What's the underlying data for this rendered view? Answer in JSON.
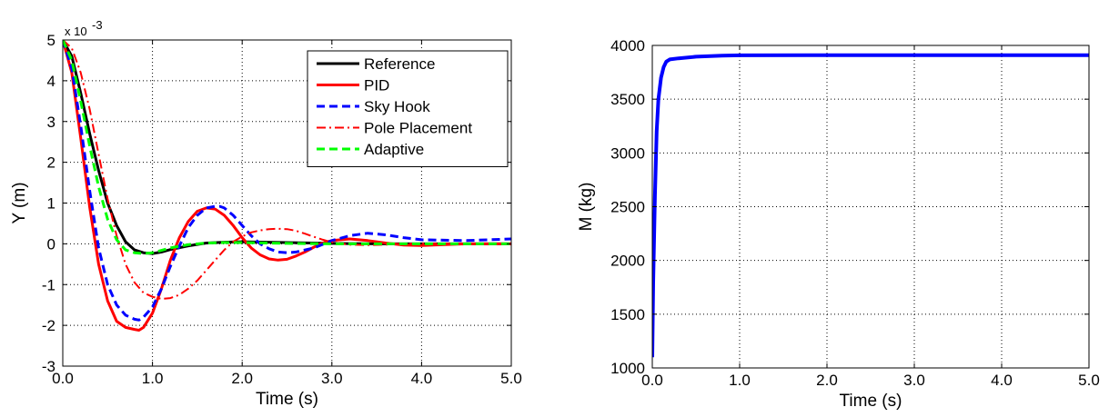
{
  "chart_data": [
    {
      "type": "line",
      "xlabel": "Time (s)",
      "ylabel": "Y (m)",
      "y_multiplier_label": "x 10",
      "y_multiplier_exponent": "-3",
      "xlim": [
        0,
        5
      ],
      "ylim": [
        -3,
        5
      ],
      "x_ticks": [
        0,
        1,
        2,
        3,
        4,
        5
      ],
      "x_tick_labels": [
        "0.0",
        "1.0",
        "2.0",
        "3.0",
        "4.0",
        "5.0"
      ],
      "y_ticks": [
        -3,
        -2,
        -1,
        0,
        1,
        2,
        3,
        4,
        5
      ],
      "y_tick_labels": [
        "-3",
        "-2",
        "-1",
        "0",
        "1",
        "2",
        "3",
        "4",
        "5"
      ],
      "grid": true,
      "legend_position": "top-right",
      "series": [
        {
          "name": "Reference",
          "color": "#000000",
          "dash": "solid",
          "width": 3,
          "x": [
            0,
            0.1,
            0.2,
            0.3,
            0.4,
            0.5,
            0.6,
            0.7,
            0.8,
            0.9,
            1.0,
            1.1,
            1.2,
            1.4,
            1.6,
            1.8,
            2.0,
            2.5,
            3.0,
            3.5,
            4.0,
            4.5,
            5.0
          ],
          "y": [
            5.0,
            4.6,
            3.7,
            2.7,
            1.8,
            1.0,
            0.45,
            0.05,
            -0.15,
            -0.22,
            -0.24,
            -0.2,
            -0.14,
            -0.05,
            0.02,
            0.04,
            0.05,
            0.03,
            0.01,
            0.0,
            0.0,
            0.0,
            0.0
          ]
        },
        {
          "name": "PID",
          "color": "#ff0000",
          "dash": "solid",
          "width": 3,
          "x": [
            0,
            0.1,
            0.2,
            0.3,
            0.4,
            0.5,
            0.6,
            0.7,
            0.8,
            0.85,
            0.9,
            1.0,
            1.1,
            1.2,
            1.3,
            1.4,
            1.5,
            1.6,
            1.7,
            1.8,
            1.9,
            2.0,
            2.1,
            2.2,
            2.3,
            2.4,
            2.5,
            2.6,
            2.7,
            2.8,
            2.9,
            3.0,
            3.2,
            3.4,
            3.6,
            3.8,
            4.0,
            4.5,
            5.0
          ],
          "y": [
            5.0,
            4.2,
            2.6,
            0.9,
            -0.5,
            -1.4,
            -1.9,
            -2.05,
            -2.1,
            -2.12,
            -2.05,
            -1.7,
            -1.1,
            -0.4,
            0.15,
            0.55,
            0.8,
            0.88,
            0.85,
            0.7,
            0.45,
            0.15,
            -0.1,
            -0.27,
            -0.37,
            -0.4,
            -0.38,
            -0.3,
            -0.2,
            -0.08,
            0.02,
            0.08,
            0.12,
            0.08,
            0.02,
            -0.03,
            -0.04,
            0.0,
            0.0
          ]
        },
        {
          "name": "Sky Hook",
          "color": "#0000ff",
          "dash": "dashed",
          "width": 3,
          "x": [
            0,
            0.1,
            0.2,
            0.3,
            0.4,
            0.5,
            0.6,
            0.7,
            0.8,
            0.85,
            0.9,
            1.0,
            1.1,
            1.2,
            1.3,
            1.4,
            1.5,
            1.6,
            1.7,
            1.75,
            1.8,
            1.9,
            2.0,
            2.1,
            2.2,
            2.3,
            2.4,
            2.5,
            2.6,
            2.8,
            3.0,
            3.2,
            3.4,
            3.6,
            3.8,
            4.0,
            4.5,
            5.0
          ],
          "y": [
            5.0,
            4.3,
            2.9,
            1.3,
            -0.1,
            -1.0,
            -1.5,
            -1.75,
            -1.85,
            -1.87,
            -1.8,
            -1.55,
            -1.1,
            -0.55,
            -0.05,
            0.4,
            0.7,
            0.88,
            0.92,
            0.92,
            0.88,
            0.7,
            0.45,
            0.2,
            0.0,
            -0.12,
            -0.2,
            -0.22,
            -0.2,
            -0.1,
            0.08,
            0.2,
            0.26,
            0.22,
            0.15,
            0.1,
            0.08,
            0.12
          ]
        },
        {
          "name": "Pole Placement",
          "color": "#ff0000",
          "dash": "dashdot",
          "width": 2,
          "x": [
            0,
            0.1,
            0.2,
            0.3,
            0.4,
            0.5,
            0.6,
            0.7,
            0.8,
            0.9,
            1.0,
            1.1,
            1.2,
            1.3,
            1.4,
            1.5,
            1.6,
            1.7,
            1.8,
            1.9,
            2.0,
            2.1,
            2.2,
            2.3,
            2.4,
            2.5,
            2.6,
            2.7,
            2.8,
            2.9,
            3.0,
            3.2,
            3.4,
            3.6,
            3.8,
            4.0,
            4.5,
            5.0
          ],
          "y": [
            5.0,
            4.8,
            4.2,
            3.3,
            2.2,
            1.1,
            0.2,
            -0.5,
            -0.95,
            -1.2,
            -1.3,
            -1.35,
            -1.33,
            -1.25,
            -1.1,
            -0.9,
            -0.65,
            -0.4,
            -0.15,
            0.05,
            0.18,
            0.28,
            0.33,
            0.36,
            0.37,
            0.36,
            0.32,
            0.25,
            0.17,
            0.1,
            0.04,
            -0.02,
            -0.03,
            -0.02,
            0.0,
            0.01,
            0.0,
            0.0
          ]
        },
        {
          "name": "Adaptive",
          "color": "#00ff00",
          "dash": "dashed",
          "width": 3,
          "x": [
            0,
            0.1,
            0.2,
            0.3,
            0.4,
            0.5,
            0.6,
            0.7,
            0.8,
            0.9,
            1.0,
            1.1,
            1.2,
            1.4,
            1.6,
            1.8,
            2.0,
            2.5,
            3.0,
            3.5,
            4.0,
            4.5,
            5.0
          ],
          "y": [
            5.0,
            4.5,
            3.5,
            2.4,
            1.4,
            0.6,
            0.1,
            -0.15,
            -0.22,
            -0.24,
            -0.22,
            -0.16,
            -0.1,
            -0.02,
            0.02,
            0.03,
            0.03,
            0.01,
            0.0,
            0.0,
            0.0,
            0.0,
            0.0
          ]
        }
      ]
    },
    {
      "type": "line",
      "xlabel": "Time (s)",
      "ylabel": "M (kg)",
      "xlim": [
        0,
        5
      ],
      "ylim": [
        1000,
        4000
      ],
      "x_ticks": [
        0,
        1,
        2,
        3,
        4,
        5
      ],
      "x_tick_labels": [
        "0.0",
        "1.0",
        "2.0",
        "3.0",
        "4.0",
        "5.0"
      ],
      "y_ticks": [
        1000,
        1500,
        2000,
        2500,
        3000,
        3500,
        4000
      ],
      "y_tick_labels": [
        "1000",
        "1500",
        "2000",
        "2500",
        "3000",
        "3500",
        "4000"
      ],
      "grid": true,
      "series": [
        {
          "color": "#0000ff",
          "dash": "solid",
          "width": 4,
          "x": [
            0,
            0.01,
            0.03,
            0.05,
            0.07,
            0.1,
            0.13,
            0.16,
            0.2,
            0.3,
            0.5,
            0.8,
            1.0,
            2.0,
            3.0,
            4.0,
            5.0
          ],
          "y": [
            1100,
            1800,
            2600,
            3200,
            3500,
            3700,
            3800,
            3850,
            3870,
            3880,
            3895,
            3905,
            3908,
            3910,
            3910,
            3910,
            3910
          ]
        }
      ]
    }
  ]
}
